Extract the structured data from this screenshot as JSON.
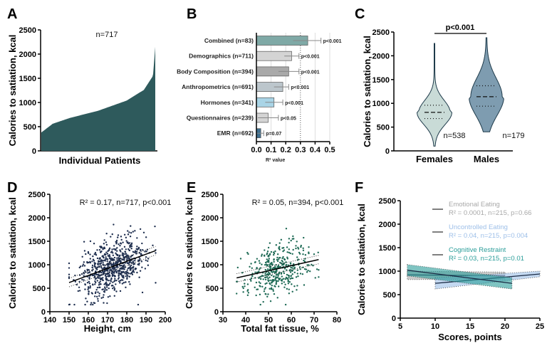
{
  "chart_data": [
    {
      "panel": "A",
      "type": "bar",
      "title": "",
      "annotation": "n=717",
      "xlabel": "Individual Patients",
      "ylabel": "Calories to satiation, kcal",
      "ylim": [
        0,
        2500
      ],
      "yticks": [
        0,
        500,
        1000,
        1500,
        2000,
        2500
      ],
      "color": "#2e5a5c",
      "n": 717,
      "quantiles": {
        "p0": 380,
        "p10": 560,
        "p25": 680,
        "p50": 830,
        "p75": 1040,
        "p90": 1260,
        "p98": 1550,
        "p100": 2150
      }
    },
    {
      "panel": "B",
      "type": "bar",
      "orientation": "horizontal",
      "xlabel": "R² value",
      "xlim": [
        0,
        0.5
      ],
      "xticks": [
        "0.0",
        "0.1",
        "0.2",
        "0.3",
        "0.4",
        "0.5"
      ],
      "reference_line": 0.3,
      "categories": [
        "Combined (n=83)",
        "Demographics (n=711)",
        "Body Composition (n=394)",
        "Anthropometrics (n=691)",
        "Hormones (n=341)",
        "Questionnaires (n=239)",
        "EMR (n=692)"
      ],
      "values": [
        0.35,
        0.24,
        0.22,
        0.18,
        0.12,
        0.08,
        0.03
      ],
      "error_low": [
        0.25,
        0.19,
        0.15,
        0.12,
        0.06,
        0.01,
        0.0
      ],
      "error_high": [
        0.44,
        0.29,
        0.29,
        0.22,
        0.18,
        0.15,
        0.05
      ],
      "pvalues": [
        "p<0.001",
        "p<0.001",
        "p<0.001",
        "p<0.001",
        "p<0.001",
        "p<0.05",
        "p=0.07"
      ],
      "colors": [
        "#7fa9a6",
        "#d4d4d4",
        "#a9a9a9",
        "#bcc6cc",
        "#a9d4e6",
        "#d4d4d4",
        "#3f6f8f"
      ]
    },
    {
      "panel": "C",
      "type": "violin",
      "ylabel": "Calories to satiation, kcal",
      "ylim": [
        0,
        2500
      ],
      "yticks": [
        0,
        500,
        1000,
        1500,
        2000,
        2500
      ],
      "categories": [
        "Females",
        "Males"
      ],
      "counts": [
        "n=538",
        "n=179"
      ],
      "significance": "p<0.001",
      "medians": [
        810,
        1140
      ],
      "q1": [
        680,
        940
      ],
      "q3": [
        960,
        1370
      ],
      "min": [
        100,
        400
      ],
      "max": [
        2260,
        2380
      ],
      "colors": [
        "#c9dbd7",
        "#7e9cb0"
      ]
    },
    {
      "panel": "D",
      "type": "scatter",
      "xlabel": "Height, cm",
      "ylabel": "Calories to satiation, kcal",
      "xlim": [
        140,
        200
      ],
      "xticks": [
        140,
        150,
        160,
        170,
        180,
        190,
        200
      ],
      "ylim": [
        0,
        2500
      ],
      "yticks": [
        0,
        500,
        1000,
        1500,
        2000,
        2500
      ],
      "annotation": "R² = 0.17, n=717, p<0.001",
      "n": 717,
      "x_range": [
        150,
        195
      ],
      "fit": {
        "x": [
          150,
          195
        ],
        "y": [
          620,
          1300
        ]
      },
      "color": "#1f2f4f"
    },
    {
      "panel": "E",
      "type": "scatter",
      "xlabel": "Total fat tissue, %",
      "ylabel": "Calories to satiation, kcal",
      "xlim": [
        30,
        80
      ],
      "xticks": [
        30,
        40,
        50,
        60,
        70,
        80
      ],
      "ylim": [
        0,
        2500
      ],
      "yticks": [
        0,
        500,
        1000,
        1500,
        2000,
        2500
      ],
      "annotation": "R² = 0.05, n=394, p<0.001",
      "n": 394,
      "x_range": [
        36,
        72
      ],
      "fit": {
        "x": [
          36,
          72
        ],
        "y": [
          720,
          1110
        ]
      },
      "color": "#1e6a55"
    },
    {
      "panel": "F",
      "type": "line",
      "xlabel": "Scores, points",
      "ylabel": "Calories to satiation, kcal",
      "xlim": [
        5,
        25
      ],
      "xticks": [
        5,
        10,
        15,
        20,
        25
      ],
      "ylim": [
        0,
        2500
      ],
      "yticks": [
        0,
        500,
        1000,
        1500,
        2000,
        2500
      ],
      "series": [
        {
          "name": "Emotional Eating",
          "stat": "R² = 0.0001, n=215, p=0.66",
          "x": [
            6,
            20
          ],
          "y": [
            920,
            900
          ],
          "ci_low": [
            820,
            830
          ],
          "ci_high": [
            1000,
            980
          ],
          "color": "#a8a8a8"
        },
        {
          "name": "Uncontrolled Eating",
          "stat": "R² = 0.04, n=215, p=0.004",
          "x": [
            10,
            25
          ],
          "y": [
            740,
            940
          ],
          "ci_low": [
            620,
            880
          ],
          "ci_high": [
            860,
            1000
          ],
          "color": "#9dbfe8"
        },
        {
          "name": "Cognitive Restraint",
          "stat": "R² = 0.03, n=215, p=0.01",
          "x": [
            6,
            21
          ],
          "y": [
            1020,
            740
          ],
          "ci_low": [
            900,
            620
          ],
          "ci_high": [
            1140,
            860
          ],
          "color": "#2a9d99"
        }
      ]
    }
  ],
  "panel_labels": [
    "A",
    "B",
    "C",
    "D",
    "E",
    "F"
  ]
}
